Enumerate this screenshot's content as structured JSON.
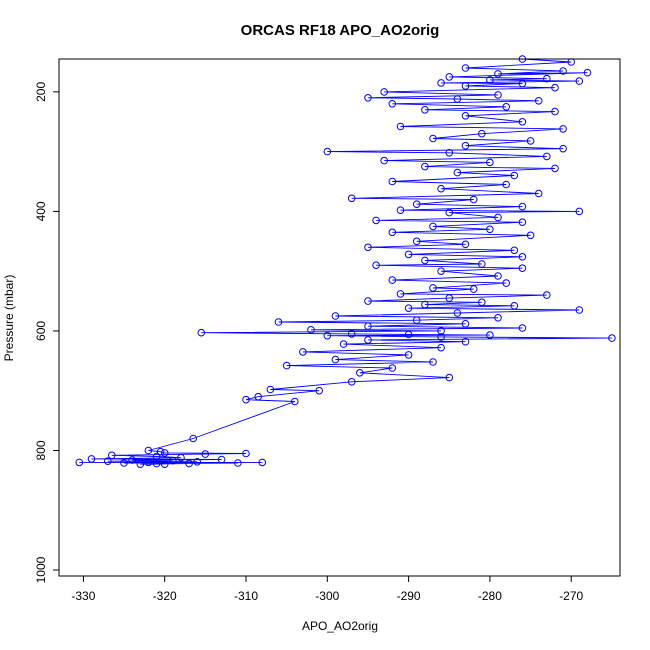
{
  "chart_data": {
    "type": "line",
    "title": "ORCAS RF18 APO_AO2orig",
    "xlabel": "APO_AO2orig",
    "ylabel": "Pressure (mbar)",
    "xlim": [
      -333.0,
      -264.0
    ],
    "ylim": [
      1010,
      145
    ],
    "y_reversed": true,
    "x_ticks": [
      -330,
      -320,
      -310,
      -300,
      -290,
      -280,
      -270
    ],
    "y_ticks": [
      200,
      400,
      600,
      800,
      1000
    ],
    "marker": "open-circle",
    "line": true,
    "grid": false,
    "legend": "none",
    "series": [
      {
        "color": "#0000ff",
        "points": [
          [
            -276,
            145
          ],
          [
            -270,
            150
          ],
          [
            -283,
            160
          ],
          [
            -271,
            165
          ],
          [
            -279,
            170
          ],
          [
            -268,
            168
          ],
          [
            -285,
            175
          ],
          [
            -273,
            178
          ],
          [
            -280,
            180
          ],
          [
            -269,
            182
          ],
          [
            -286,
            185
          ],
          [
            -276,
            186
          ],
          [
            -283,
            190
          ],
          [
            -272,
            193
          ],
          [
            -293,
            200
          ],
          [
            -279,
            205
          ],
          [
            -295,
            210
          ],
          [
            -284,
            212
          ],
          [
            -274,
            215
          ],
          [
            -292,
            220
          ],
          [
            -278,
            225
          ],
          [
            -288,
            230
          ],
          [
            -272,
            233
          ],
          [
            -283,
            240
          ],
          [
            -276,
            250
          ],
          [
            -291,
            258
          ],
          [
            -271,
            262
          ],
          [
            -281,
            270
          ],
          [
            -287,
            278
          ],
          [
            -275,
            282
          ],
          [
            -283,
            290
          ],
          [
            -271,
            295
          ],
          [
            -300,
            300
          ],
          [
            -285,
            302
          ],
          [
            -273,
            308
          ],
          [
            -293,
            315
          ],
          [
            -280,
            318
          ],
          [
            -288,
            325
          ],
          [
            -272,
            328
          ],
          [
            -284,
            335
          ],
          [
            -277,
            340
          ],
          [
            -292,
            350
          ],
          [
            -278,
            355
          ],
          [
            -286,
            362
          ],
          [
            -274,
            370
          ],
          [
            -297,
            378
          ],
          [
            -282,
            380
          ],
          [
            -289,
            388
          ],
          [
            -276,
            392
          ],
          [
            -291,
            398
          ],
          [
            -269,
            400
          ],
          [
            -285,
            402
          ],
          [
            -279,
            410
          ],
          [
            -294,
            415
          ],
          [
            -276,
            418
          ],
          [
            -287,
            425
          ],
          [
            -280,
            430
          ],
          [
            -292,
            435
          ],
          [
            -275,
            440
          ],
          [
            -289,
            450
          ],
          [
            -283,
            455
          ],
          [
            -295,
            460
          ],
          [
            -277,
            465
          ],
          [
            -290,
            472
          ],
          [
            -276,
            476
          ],
          [
            -288,
            482
          ],
          [
            -281,
            488
          ],
          [
            -294,
            490
          ],
          [
            -276,
            495
          ],
          [
            -286,
            500
          ],
          [
            -279,
            508
          ],
          [
            -292,
            515
          ],
          [
            -278,
            520
          ],
          [
            -287,
            528
          ],
          [
            -282,
            530
          ],
          [
            -291,
            538
          ],
          [
            -273,
            540
          ],
          [
            -285,
            545
          ],
          [
            -295,
            550
          ],
          [
            -281,
            552
          ],
          [
            -288,
            556
          ],
          [
            -277,
            558
          ],
          [
            -290,
            562
          ],
          [
            -269,
            565
          ],
          [
            -284,
            570
          ],
          [
            -299,
            575
          ],
          [
            -279,
            578
          ],
          [
            -289,
            582
          ],
          [
            -306,
            585
          ],
          [
            -283,
            588
          ],
          [
            -295,
            592
          ],
          [
            -276,
            595
          ],
          [
            -302,
            598
          ],
          [
            -286,
            600
          ],
          [
            -315.5,
            603
          ],
          [
            -297,
            605
          ],
          [
            -290,
            606
          ],
          [
            -280,
            607
          ],
          [
            -300,
            608
          ],
          [
            -286,
            610
          ],
          [
            -265,
            612
          ],
          [
            -295,
            615
          ],
          [
            -283,
            618
          ],
          [
            -298,
            622
          ],
          [
            -286,
            628
          ],
          [
            -303,
            635
          ],
          [
            -290,
            640
          ],
          [
            -299,
            648
          ],
          [
            -287,
            652
          ],
          [
            -305,
            658
          ],
          [
            -292,
            662
          ],
          [
            -296,
            670
          ],
          [
            -285,
            678
          ],
          [
            -297,
            685
          ],
          [
            -307,
            698
          ],
          [
            -301,
            700
          ],
          [
            -308.5,
            710
          ],
          [
            -310,
            715
          ],
          [
            -304,
            718
          ],
          [
            -316.5,
            780
          ],
          [
            -322,
            800
          ],
          [
            -320.5,
            802
          ],
          [
            -320,
            804
          ],
          [
            -310,
            805
          ],
          [
            -315,
            806
          ],
          [
            -326.5,
            808
          ],
          [
            -321,
            810
          ],
          [
            -318,
            812
          ],
          [
            -329,
            814
          ],
          [
            -313,
            815
          ],
          [
            -324,
            816
          ],
          [
            -319,
            817
          ],
          [
            -327,
            818
          ],
          [
            -316,
            819
          ],
          [
            -322,
            820
          ],
          [
            -330.5,
            820
          ],
          [
            -308,
            820
          ],
          [
            -325,
            821
          ],
          [
            -311,
            821
          ],
          [
            -321,
            822
          ],
          [
            -317,
            822
          ],
          [
            -323,
            823
          ],
          [
            -320,
            823
          ]
        ]
      }
    ]
  }
}
